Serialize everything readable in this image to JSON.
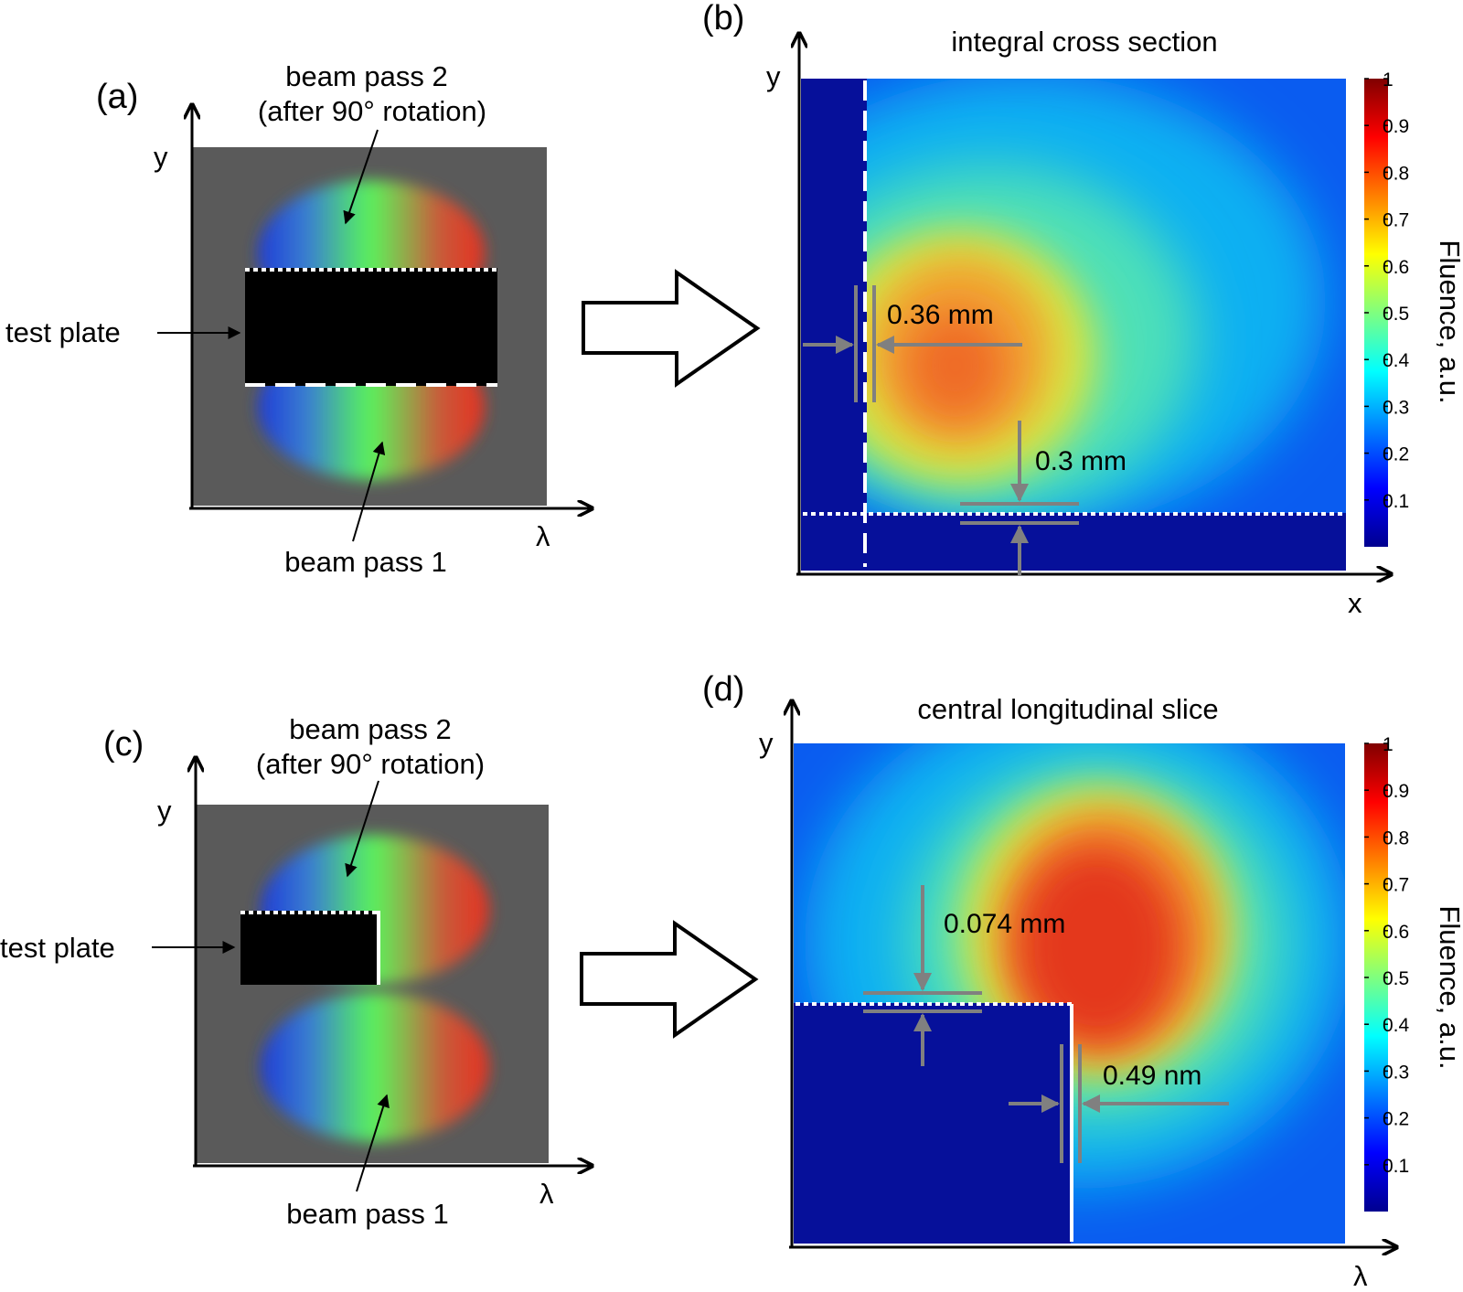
{
  "colors": {
    "panel_bg": "#5a5a5a",
    "plate": "#000000",
    "marker": "#ffffff",
    "meas_arrow": "#808080",
    "outside": "#06109a"
  },
  "panel_a": {
    "label": "(a)",
    "y_axis": "y",
    "x_axis": "λ",
    "beam2_line1": "beam pass 2",
    "beam2_line2": "(after 90° rotation)",
    "test_plate": "test plate",
    "beam1": "beam pass 1"
  },
  "panel_b": {
    "label": "(b)",
    "title": "integral cross section",
    "y_axis": "y",
    "x_axis": "x",
    "meas_horizontal": "0.36 mm",
    "meas_vertical": "0.3 mm"
  },
  "panel_c": {
    "label": "(c)",
    "y_axis": "y",
    "x_axis": "λ",
    "beam2_line1": "beam pass 2",
    "beam2_line2": "(after 90° rotation)",
    "test_plate": "test plate",
    "beam1": "beam pass 1"
  },
  "panel_d": {
    "label": "(d)",
    "title": "central longitudinal slice",
    "y_axis": "y",
    "x_axis": "λ",
    "meas_vertical": "0.074 mm",
    "meas_horizontal": "0.49 nm"
  },
  "colorbar": {
    "label": "Fluence, a.u.",
    "ticks": [
      "1",
      "0.9",
      "0.8",
      "0.7",
      "0.6",
      "0.5",
      "0.4",
      "0.3",
      "0.2",
      "0.1"
    ],
    "tick_values": [
      1,
      0.9,
      0.8,
      0.7,
      0.6,
      0.5,
      0.4,
      0.3,
      0.2,
      0.1
    ],
    "range": [
      0,
      1
    ]
  }
}
